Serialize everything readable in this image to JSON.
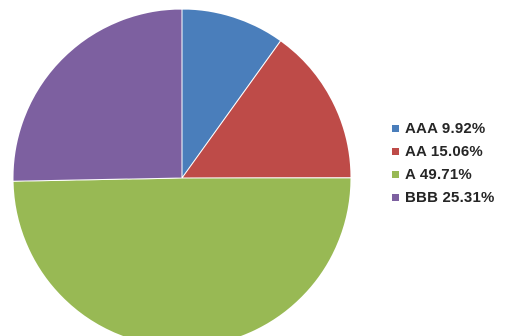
{
  "chart_data": {
    "type": "pie",
    "title": "",
    "start_angle_deg": 0,
    "direction": "clockwise",
    "legend_position": "right",
    "slices": [
      {
        "label": "AAA",
        "value": 9.92,
        "display": "9.92%",
        "color": "#4a7ebb"
      },
      {
        "label": "AA",
        "value": 15.06,
        "display": "15.06%",
        "color": "#be4b48"
      },
      {
        "label": "A",
        "value": 49.71,
        "display": "49.71%",
        "color": "#98b954"
      },
      {
        "label": "BBB",
        "value": 25.31,
        "display": "25.31%",
        "color": "#7d60a0"
      }
    ]
  }
}
